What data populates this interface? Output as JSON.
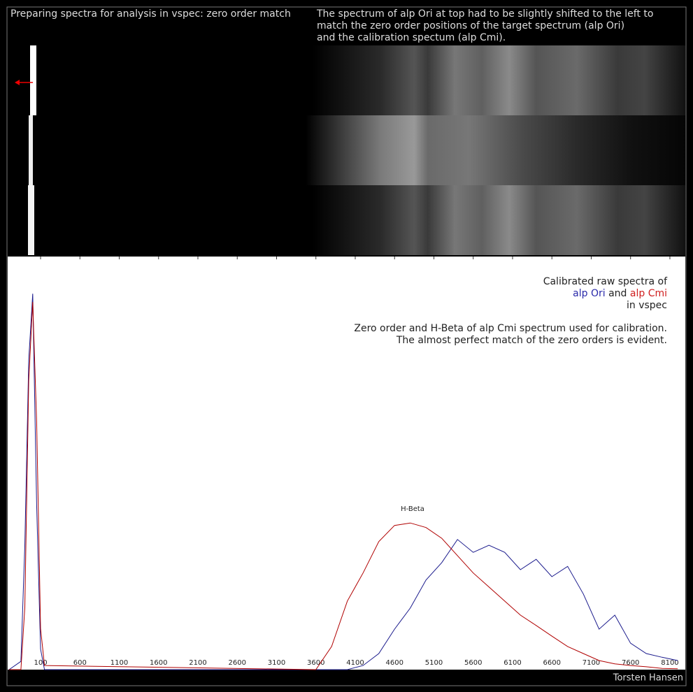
{
  "header": {
    "title": "Preparing spectra for analysis in vspec: zero order match",
    "note_lines": [
      "The spectrum of alp Ori at top had to be slightly shifted to the left to",
      "match the zero order positions of the target spectrum (alp Ori)",
      "and the calibration spectum (alp Cmi)."
    ]
  },
  "legend_text": {
    "line1": "Calibrated raw spectra of",
    "ori": "alp Ori",
    "and": "and",
    "cmi": "alp Cmi",
    "line3": "in vspec",
    "line4": "Zero order and H-Beta of alp Cmi spectrum used for calibration.",
    "line5": "The almost perfect match of the zero orders is evident."
  },
  "author": "Torsten Hansen",
  "chart_data": {
    "type": "line",
    "annotation": "H-Beta",
    "x": [
      -300,
      -150,
      -100,
      -50,
      0,
      50,
      100,
      150,
      3600,
      3800,
      4000,
      4200,
      4400,
      4600,
      4800,
      5000,
      5200,
      5400,
      5600,
      5800,
      6000,
      6200,
      6400,
      6600,
      6800,
      7000,
      7200,
      7400,
      7600,
      7800,
      8000,
      8200
    ],
    "series": [
      {
        "name": "alp Ori",
        "color": "#1a1a8c",
        "values": [
          0,
          2,
          30,
          75,
          91,
          40,
          5,
          0,
          0,
          0,
          0,
          1.0,
          3.9,
          9.8,
          14.9,
          21.7,
          25.9,
          31.5,
          28.4,
          30.1,
          28.4,
          24.2,
          26.7,
          22.5,
          25.0,
          18.3,
          9.8,
          13.2,
          6.4,
          3.9,
          3.0,
          2.2
        ]
      },
      {
        "name": "alp Cmi",
        "color": "#b00000",
        "values": [
          0,
          0,
          15,
          70,
          89,
          60,
          10,
          1,
          0,
          5.6,
          16.6,
          23.4,
          31.0,
          34.9,
          35.5,
          34.4,
          31.8,
          27.6,
          23.4,
          20.0,
          16.6,
          13.2,
          10.7,
          8.1,
          5.6,
          3.9,
          2.2,
          1.4,
          1.0,
          0.7,
          0.3,
          0.2
        ]
      }
    ],
    "xlim": [
      -318,
      8296
    ],
    "xticks": [
      100,
      600,
      1100,
      1600,
      2100,
      2600,
      3100,
      3600,
      4100,
      4600,
      5100,
      5600,
      6100,
      6600,
      7100,
      7600,
      8100
    ],
    "ylim": [
      0,
      100
    ]
  }
}
